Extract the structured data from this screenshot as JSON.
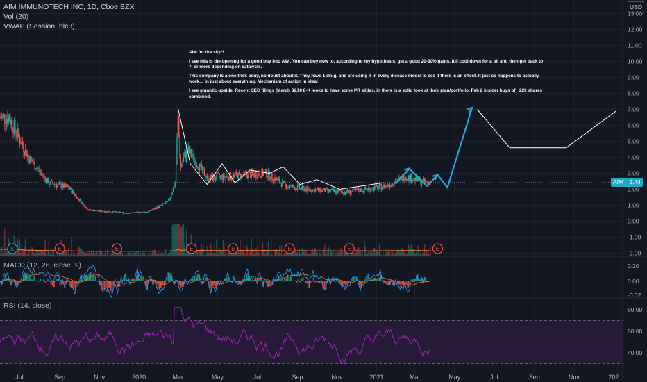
{
  "title": "AIM IMMUNOTECH INC, 1D, Cboe BZX",
  "indicators": {
    "volume": "Vol (20)",
    "vwap": "VWAP (Session, hlc3)",
    "macd": "MACD (12, 26, close, 9)",
    "rsi": "RSI (14, close)"
  },
  "currency": "USD",
  "price_tag": {
    "symbol": "AIM",
    "value": "2.44"
  },
  "idea_note": [
    "AIM for the sky*!",
    "I see this is the opening for a good buy into AIM. You can buy now to, according to my hypothesis, get a good 20-30% gains, it'll cool down for a bit and then get back to 7, or more depending on catalysts.",
    "This company is a one trick pony, no doubt about it. They have 1 drug, and are using it in every disease model to see if there is an effect. It just so happens to actually work… in just about everything. Mechanism of action in idea!",
    "I see gigantic upside. Recent SEC filings (March 8&10 8-K looks to have some PR slides, in there is a solid look at their plan/portfolio, Feb 2 insider buys of ~22k shares combined."
  ],
  "event_markers": [
    "S",
    "E",
    "E",
    "E",
    "E",
    "E",
    "E",
    "E"
  ],
  "colors": {
    "background": "#131722",
    "up": "#26a69a",
    "down": "#ef5350",
    "projection": "#29a5d8",
    "rsi_line": "#9c27b0",
    "rsi_band": "#2a1b3a",
    "vwap": "#ff7b39",
    "drawing": "#ffffff"
  },
  "chart_data": [
    {
      "type": "candlestick",
      "title": "AIM IMMUNOTECH INC, 1D, Cboe BZX",
      "x": [
        "2019-06",
        "2019-07",
        "2019-08",
        "2019-09",
        "2019-10",
        "2019-11",
        "2019-12",
        "2020-01",
        "2020-02",
        "2020-03",
        "2020-04",
        "2020-05",
        "2020-06",
        "2020-07",
        "2020-08",
        "2020-09",
        "2020-10",
        "2020-11",
        "2020-12",
        "2021-01",
        "2021-02",
        "2021-03"
      ],
      "close": [
        6.5,
        4.0,
        2.4,
        2.1,
        0.7,
        0.6,
        0.5,
        0.6,
        1.2,
        4.5,
        2.7,
        2.8,
        2.9,
        3.0,
        2.2,
        2.0,
        1.9,
        1.8,
        2.0,
        2.2,
        2.8,
        2.44
      ],
      "x_tick_labels": [
        "Jul",
        "Sep",
        "Nov",
        "2020",
        "Mar",
        "May",
        "Jul",
        "Sep",
        "Nov",
        "2021",
        "Mar",
        "May",
        "Jul",
        "Sep",
        "Nov",
        "202"
      ],
      "y_tick_labels": [
        "-2.00",
        "-1.00",
        "0.00",
        "1.00",
        "2.00",
        "3.00",
        "4.00",
        "5.00",
        "6.00",
        "7.00",
        "8.00",
        "9.00",
        "10.00",
        "11.00",
        "12.00",
        "13.00"
      ],
      "ylim": [
        -2,
        13.5
      ],
      "drawings": {
        "white_trend": [
          {
            "date": "2020-03-01",
            "price": 7.1
          },
          {
            "date": "2020-03-20",
            "price": 3.6
          },
          {
            "date": "2020-04-15",
            "price": 2.3
          },
          {
            "date": "2020-05-08",
            "price": 3.6
          },
          {
            "date": "2020-05-28",
            "price": 2.4
          },
          {
            "date": "2020-06-20",
            "price": 3.2
          },
          {
            "date": "2020-07-20",
            "price": 3.0
          },
          {
            "date": "2020-08-10",
            "price": 3.4
          },
          {
            "date": "2020-09-05",
            "price": 2.3
          },
          {
            "date": "2020-10-01",
            "price": 2.6
          },
          {
            "date": "2020-11-05",
            "price": 2.0
          },
          {
            "date": "2021-01-10",
            "price": 2.4
          }
        ],
        "white_projection": [
          {
            "date": "2021-06-05",
            "price": 7.0
          },
          {
            "date": "2021-07-25",
            "price": 4.6
          },
          {
            "date": "2021-10-20",
            "price": 4.6
          },
          {
            "date": "2022-01-05",
            "price": 6.9
          }
        ],
        "blue_arrows": [
          {
            "date": "2021-02-01",
            "price": 2.4
          },
          {
            "date": "2021-02-20",
            "price": 3.3
          },
          {
            "date": "2021-03-20",
            "price": 2.2
          },
          {
            "date": "2021-04-05",
            "price": 2.9
          },
          {
            "date": "2021-04-20",
            "price": 2.1
          },
          {
            "date": "2021-05-28",
            "price": 7.1
          }
        ]
      }
    },
    {
      "type": "bar",
      "title": "MACD (12, 26, close, 9)",
      "y_tick_labels": [
        "0.20",
        "0.00",
        "-0.02"
      ]
    },
    {
      "type": "line",
      "title": "RSI (14, close)",
      "y_tick_labels": [
        "80.00",
        "60.00",
        "40.00"
      ],
      "bands": [
        70,
        30
      ]
    }
  ]
}
